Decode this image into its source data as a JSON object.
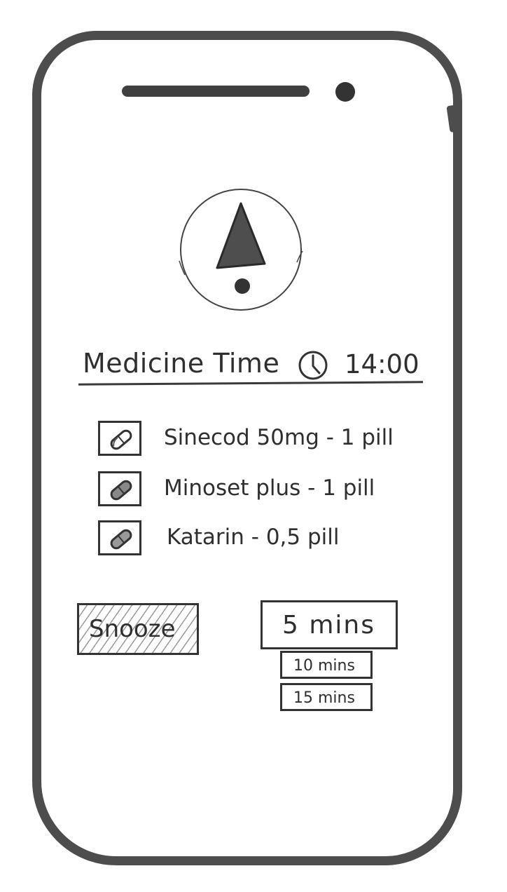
{
  "colors": {
    "frame": "#4d4d4d",
    "ink": "#2f2f2f",
    "alert_fill": "#4e4e4e",
    "hatch": "#9a9a9a",
    "background": "#ffffff"
  },
  "status_bar": {
    "speaker_icon": "speaker-bar",
    "camera_icon": "camera-dot"
  },
  "alert": {
    "icon": "exclamation-alert-icon"
  },
  "header": {
    "title": "Medicine Time",
    "clock_icon": "clock-icon",
    "time": "14:00"
  },
  "medications": [
    {
      "label": "Sinecod 50mg - 1 pill",
      "icon": "pill-icon"
    },
    {
      "label": "Minoset plus - 1 pill",
      "icon": "pill-icon"
    },
    {
      "label": "Katarin - 0,5 pill",
      "icon": "pill-icon"
    }
  ],
  "snooze": {
    "label": "Snooze"
  },
  "snooze_duration": {
    "selected": "5 mins",
    "options": [
      "10 mins",
      "15 mins"
    ]
  }
}
